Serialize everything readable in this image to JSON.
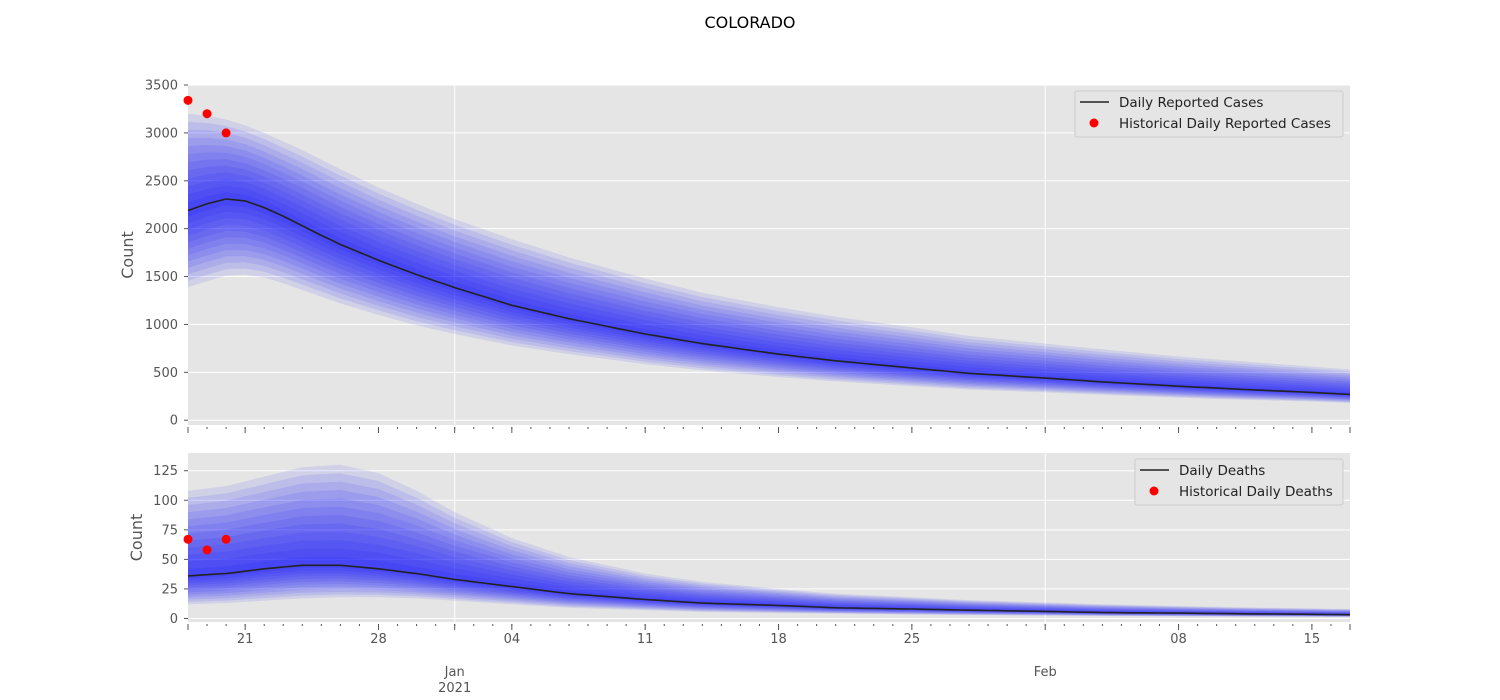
{
  "title": "COLORADO",
  "colors": {
    "panel_bg": "#e5e5e5",
    "grid": "#ffffff",
    "band": "#0000ff",
    "median": "#222222",
    "historical": "#ff0000",
    "tick": "#555555"
  },
  "x_axis": {
    "start": "2020-12-18",
    "end": "2021-02-17",
    "day_ticks": [
      {
        "date": "2020-12-21",
        "label": "21"
      },
      {
        "date": "2020-12-28",
        "label": "28"
      },
      {
        "date": "2021-01-04",
        "label": "04"
      },
      {
        "date": "2021-01-11",
        "label": "11"
      },
      {
        "date": "2021-01-18",
        "label": "18"
      },
      {
        "date": "2021-01-25",
        "label": "25"
      },
      {
        "date": "2021-02-08",
        "label": "08"
      },
      {
        "date": "2021-02-15",
        "label": "15"
      }
    ],
    "month_ticks": [
      {
        "date": "2021-01-01",
        "label": "Jan",
        "sublabel": "2021"
      },
      {
        "date": "2021-02-01",
        "label": "Feb",
        "sublabel": ""
      }
    ]
  },
  "chart_data": [
    {
      "type": "area",
      "ylabel": "Count",
      "ylim": [
        -50,
        3500
      ],
      "yticks": [
        0,
        500,
        1000,
        1500,
        2000,
        2500,
        3000,
        3500
      ],
      "grid": true,
      "legend_placement": "top-right",
      "legend": [
        "Daily Reported Cases",
        "Historical Daily Reported Cases"
      ],
      "bands": "fan of quantile bands around median (outermost ≈ ±40% at start)",
      "series": [
        {
          "name": "Daily Reported Cases",
          "kind": "line",
          "x": [
            "2020-12-18",
            "2020-12-19",
            "2020-12-20",
            "2020-12-21",
            "2020-12-22",
            "2020-12-23",
            "2020-12-24",
            "2020-12-25",
            "2020-12-26",
            "2020-12-28",
            "2020-12-30",
            "2021-01-01",
            "2021-01-04",
            "2021-01-07",
            "2021-01-11",
            "2021-01-14",
            "2021-01-18",
            "2021-01-21",
            "2021-01-25",
            "2021-01-28",
            "2021-02-01",
            "2021-02-04",
            "2021-02-08",
            "2021-02-11",
            "2021-02-15",
            "2021-02-17"
          ],
          "y": [
            2190,
            2260,
            2310,
            2290,
            2220,
            2130,
            2030,
            1930,
            1835,
            1670,
            1520,
            1385,
            1200,
            1060,
            900,
            800,
            690,
            620,
            545,
            490,
            440,
            400,
            355,
            325,
            290,
            270
          ]
        },
        {
          "name": "Historical Daily Reported Cases",
          "kind": "scatter",
          "x": [
            "2020-12-18",
            "2020-12-19",
            "2020-12-20"
          ],
          "y": [
            3340,
            3200,
            3000
          ]
        }
      ],
      "band_upper_outer": [
        3200,
        3180,
        3140,
        3080,
        3000,
        2910,
        2820,
        2720,
        2620,
        2430,
        2260,
        2100,
        1890,
        1700,
        1480,
        1330,
        1180,
        1080,
        970,
        880,
        800,
        740,
        665,
        620,
        560,
        530
      ],
      "band_lower_outer": [
        1390,
        1450,
        1510,
        1520,
        1490,
        1430,
        1360,
        1290,
        1220,
        1100,
        990,
        900,
        780,
        690,
        585,
        520,
        450,
        405,
        355,
        320,
        290,
        265,
        235,
        215,
        195,
        180
      ]
    },
    {
      "type": "area",
      "ylabel": "Count",
      "ylim": [
        -3,
        140
      ],
      "yticks": [
        0,
        25,
        50,
        75,
        100,
        125
      ],
      "grid": true,
      "legend_placement": "top-right",
      "legend": [
        "Daily Deaths",
        "Historical Daily Deaths"
      ],
      "series": [
        {
          "name": "Daily Deaths",
          "kind": "line",
          "x": [
            "2020-12-18",
            "2020-12-20",
            "2020-12-22",
            "2020-12-24",
            "2020-12-26",
            "2020-12-28",
            "2020-12-30",
            "2021-01-01",
            "2021-01-04",
            "2021-01-07",
            "2021-01-11",
            "2021-01-14",
            "2021-01-18",
            "2021-01-21",
            "2021-01-25",
            "2021-01-28",
            "2021-02-01",
            "2021-02-04",
            "2021-02-08",
            "2021-02-11",
            "2021-02-15",
            "2021-02-17"
          ],
          "y": [
            36,
            38,
            42,
            45,
            45,
            42,
            38,
            33,
            27,
            21,
            16,
            13,
            11,
            9,
            8,
            7,
            6,
            5,
            4.5,
            4,
            3.5,
            3.2
          ]
        },
        {
          "name": "Historical Daily Deaths",
          "kind": "scatter",
          "x": [
            "2020-12-18",
            "2020-12-19",
            "2020-12-20"
          ],
          "y": [
            67,
            58,
            67
          ]
        }
      ],
      "band_upper_outer": [
        108,
        112,
        120,
        128,
        130,
        123,
        108,
        90,
        68,
        52,
        38,
        31,
        25,
        21,
        18,
        15.5,
        13.5,
        12,
        10.5,
        9.5,
        8.5,
        8
      ],
      "band_lower_outer": [
        12,
        13,
        15,
        17,
        18,
        18,
        17,
        15,
        12,
        9,
        7,
        5.5,
        4.5,
        4,
        3.2,
        2.8,
        2.4,
        2.1,
        1.8,
        1.6,
        1.4,
        1.3
      ]
    }
  ]
}
